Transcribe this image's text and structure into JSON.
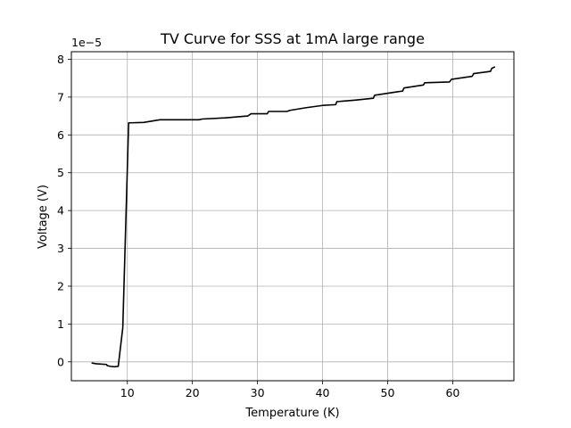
{
  "chart_data": {
    "type": "line",
    "title": "TV Curve for SSS at 1mA large range",
    "xlabel": "Temperature (K)",
    "ylabel": "Voltage (V)",
    "y_offset_label": "1e−5",
    "y_scale_exponent": -5,
    "xlim": [
      1.4,
      69.4
    ],
    "ylim": [
      -0.5,
      8.2
    ],
    "x_ticks": [
      10,
      20,
      30,
      40,
      50,
      60
    ],
    "x_tick_labels": [
      "10",
      "20",
      "30",
      "40",
      "50",
      "60"
    ],
    "y_ticks": [
      0,
      1,
      2,
      3,
      4,
      5,
      6,
      7,
      8
    ],
    "y_tick_labels": [
      "0",
      "1",
      "2",
      "3",
      "4",
      "5",
      "6",
      "7",
      "8"
    ],
    "grid": true,
    "line_color": "#000000",
    "series": [
      {
        "x": [
          4.5,
          5.2,
          6.8,
          6.9,
          7.4,
          8.0,
          8.6,
          9.3,
          10.2,
          10.5,
          12.5,
          15.0,
          21.0,
          21.5,
          25.0,
          28.5,
          29.0,
          31.5,
          31.7,
          34.5,
          35.0,
          37.5,
          40.0,
          42.0,
          42.2,
          45.0,
          47.8,
          48.0,
          51.5,
          52.3,
          52.5,
          55.5,
          55.7,
          59.5,
          59.8,
          63.0,
          63.2,
          65.8,
          66.0,
          66.5
        ],
        "y": [
          -0.03,
          -0.05,
          -0.07,
          -0.1,
          -0.12,
          -0.13,
          -0.12,
          0.9,
          6.32,
          6.32,
          6.33,
          6.4,
          6.4,
          6.42,
          6.45,
          6.5,
          6.56,
          6.56,
          6.62,
          6.62,
          6.65,
          6.72,
          6.78,
          6.8,
          6.88,
          6.92,
          6.97,
          7.05,
          7.14,
          7.16,
          7.24,
          7.32,
          7.38,
          7.4,
          7.47,
          7.55,
          7.62,
          7.68,
          7.76,
          7.8
        ]
      }
    ]
  }
}
